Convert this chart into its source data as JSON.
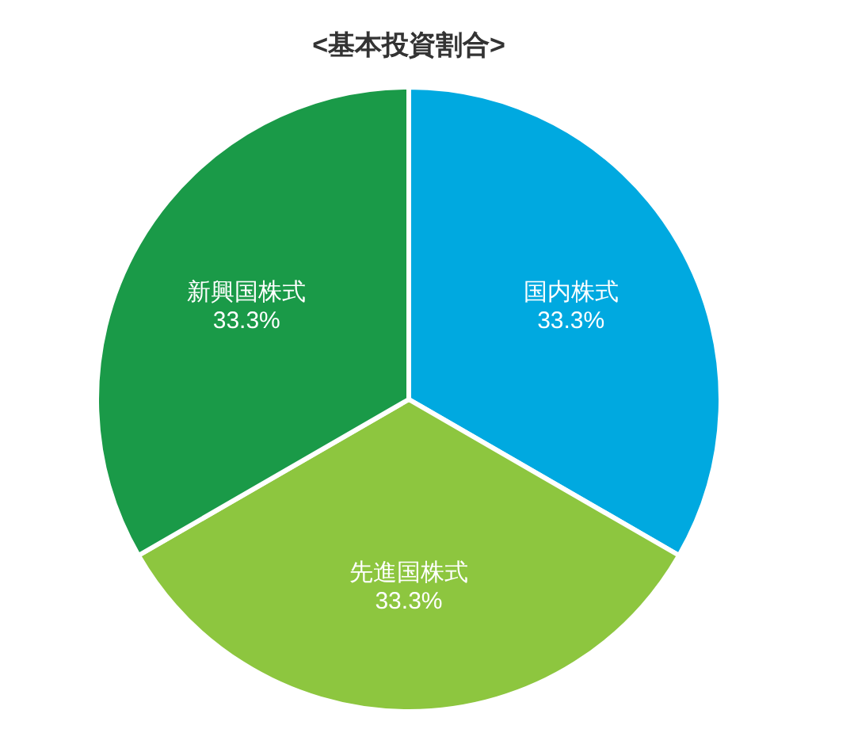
{
  "chart_data": {
    "type": "pie",
    "title": "<基本投資割合>",
    "categories": [
      "国内株式",
      "先進国株式",
      "新興国株式"
    ],
    "values": [
      33.3,
      33.3,
      33.3
    ],
    "value_labels": [
      "33.3%",
      "33.3%",
      "33.3%"
    ],
    "colors": [
      "#00a9e0",
      "#8dc63f",
      "#1a9a48"
    ],
    "legend": false
  }
}
